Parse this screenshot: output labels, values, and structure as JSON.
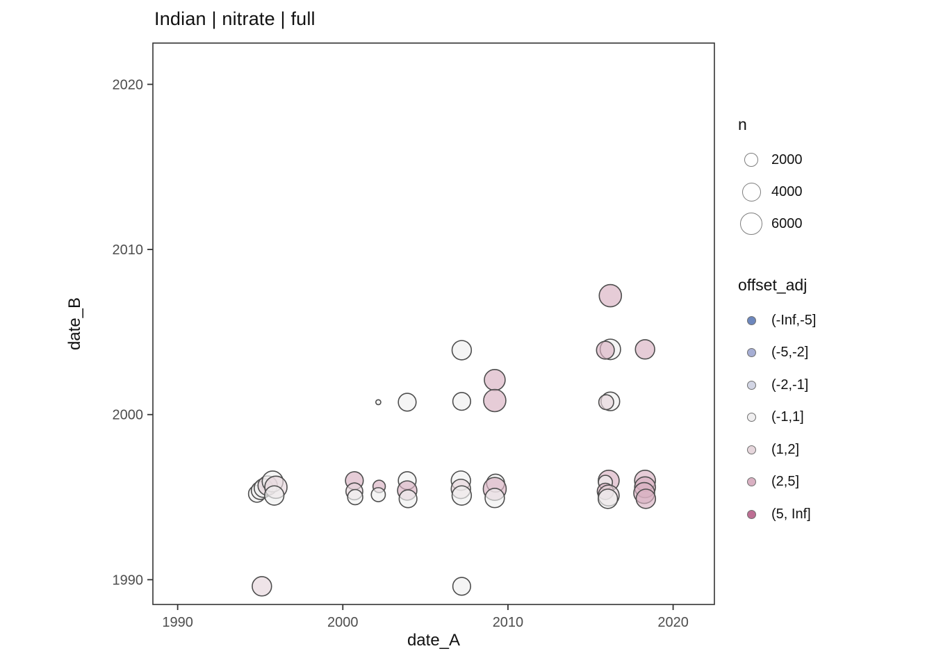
{
  "title": "Indian | nitrate | full",
  "axes": {
    "x_label": "date_A",
    "y_label": "date_B",
    "x_ticks": [
      "1990",
      "2000",
      "2010",
      "2020"
    ],
    "y_ticks": [
      "1990",
      "2000",
      "2010",
      "2020"
    ]
  },
  "legend": {
    "n": {
      "title": "n",
      "items": [
        {
          "label": "2000",
          "n": 2000
        },
        {
          "label": "4000",
          "n": 4000
        },
        {
          "label": "6000",
          "n": 6000
        }
      ]
    },
    "offset_adj": {
      "title": "offset_adj",
      "items": [
        {
          "label": "(-Inf,-5]",
          "color": "#6d87bd"
        },
        {
          "label": "(-5,-2]",
          "color": "#a6aed4"
        },
        {
          "label": "(-2,-1]",
          "color": "#d2d5e4"
        },
        {
          "label": "(-1,1]",
          "color": "#f0eff0"
        },
        {
          "label": "(1,2]",
          "color": "#e6d6dc"
        },
        {
          "label": "(2,5]",
          "color": "#d9b0c2"
        },
        {
          "label": "(5, Inf]",
          "color": "#bd6e93"
        }
      ]
    }
  },
  "chart_data": {
    "type": "scatter",
    "title": "Indian | nitrate | full",
    "xlabel": "date_A",
    "ylabel": "date_B",
    "xlim": [
      1988.5,
      2022.5
    ],
    "ylim": [
      1988.5,
      2022.5
    ],
    "x_ticks": [
      1990,
      2000,
      2010,
      2020
    ],
    "y_ticks": [
      1990,
      2000,
      2010,
      2020
    ],
    "grid": false,
    "legend_position": "right",
    "size_legend": {
      "name": "n",
      "values": [
        2000,
        4000,
        6000
      ]
    },
    "color_legend": {
      "name": "offset_adj",
      "buckets": [
        "(-Inf,-5]",
        "(-5,-2]",
        "(-2,-1]",
        "(-1,1]",
        "(1,2]",
        "(2,5]",
        "(5, Inf]"
      ]
    },
    "points": [
      {
        "date_A": 1994.8,
        "date_B": 1995.2,
        "n": 3300,
        "offset_adj": "(-1,1]"
      },
      {
        "date_A": 1995.0,
        "date_B": 1995.4,
        "n": 3700,
        "offset_adj": "(-1,1]"
      },
      {
        "date_A": 1995.2,
        "date_B": 1995.55,
        "n": 4100,
        "offset_adj": "(-1,1]"
      },
      {
        "date_A": 1995.45,
        "date_B": 1995.7,
        "n": 4400,
        "offset_adj": "(1,2]"
      },
      {
        "date_A": 1995.75,
        "date_B": 1995.95,
        "n": 5100,
        "offset_adj": "(-1,1]"
      },
      {
        "date_A": 1995.95,
        "date_B": 1995.6,
        "n": 5800,
        "offset_adj": "(1,2]"
      },
      {
        "date_A": 1995.85,
        "date_B": 1995.1,
        "n": 4400,
        "offset_adj": "(-1,1]"
      },
      {
        "date_A": 1995.1,
        "date_B": 1989.6,
        "n": 4400,
        "offset_adj": "(1,2]"
      },
      {
        "date_A": 2000.7,
        "date_B": 1996.0,
        "n": 3700,
        "offset_adj": "(2,5]"
      },
      {
        "date_A": 2000.7,
        "date_B": 1995.35,
        "n": 3300,
        "offset_adj": "(1,2]"
      },
      {
        "date_A": 2000.75,
        "date_B": 1995.0,
        "n": 2700,
        "offset_adj": "(-1,1]"
      },
      {
        "date_A": 2002.15,
        "date_B": 2000.75,
        "n": 300,
        "offset_adj": "(-1,1]"
      },
      {
        "date_A": 2002.2,
        "date_B": 1995.65,
        "n": 1800,
        "offset_adj": "(2,5]"
      },
      {
        "date_A": 2002.15,
        "date_B": 1995.15,
        "n": 2300,
        "offset_adj": "(-1,1]"
      },
      {
        "date_A": 2003.9,
        "date_B": 2000.75,
        "n": 3700,
        "offset_adj": "(-1,1]"
      },
      {
        "date_A": 2003.9,
        "date_B": 1996.0,
        "n": 3700,
        "offset_adj": "(-1,1]"
      },
      {
        "date_A": 2003.9,
        "date_B": 1995.4,
        "n": 4400,
        "offset_adj": "(2,5]"
      },
      {
        "date_A": 2003.95,
        "date_B": 1994.9,
        "n": 3700,
        "offset_adj": "(-1,1]"
      },
      {
        "date_A": 2007.2,
        "date_B": 2003.9,
        "n": 4400,
        "offset_adj": "(-1,1]"
      },
      {
        "date_A": 2007.2,
        "date_B": 2000.8,
        "n": 3700,
        "offset_adj": "(-1,1]"
      },
      {
        "date_A": 2007.15,
        "date_B": 1996.0,
        "n": 4400,
        "offset_adj": "(-1,1]"
      },
      {
        "date_A": 2007.15,
        "date_B": 1995.5,
        "n": 4400,
        "offset_adj": "(1,2]"
      },
      {
        "date_A": 2007.2,
        "date_B": 1995.1,
        "n": 4400,
        "offset_adj": "(-1,1]"
      },
      {
        "date_A": 2007.2,
        "date_B": 1989.6,
        "n": 3700,
        "offset_adj": "(-1,1]"
      },
      {
        "date_A": 2009.2,
        "date_B": 2002.1,
        "n": 5100,
        "offset_adj": "(2,5]"
      },
      {
        "date_A": 2009.2,
        "date_B": 2000.85,
        "n": 5800,
        "offset_adj": "(2,5]"
      },
      {
        "date_A": 2009.25,
        "date_B": 1995.85,
        "n": 3800,
        "offset_adj": "(-1,1]"
      },
      {
        "date_A": 2009.2,
        "date_B": 1995.5,
        "n": 6200,
        "offset_adj": "(2,5]"
      },
      {
        "date_A": 2009.2,
        "date_B": 1994.95,
        "n": 4400,
        "offset_adj": "(-1,1]"
      },
      {
        "date_A": 2016.2,
        "date_B": 2007.2,
        "n": 5800,
        "offset_adj": "(2,5]"
      },
      {
        "date_A": 2016.2,
        "date_B": 2003.95,
        "n": 4900,
        "offset_adj": "(-1,1]"
      },
      {
        "date_A": 2015.9,
        "date_B": 2003.9,
        "n": 3700,
        "offset_adj": "(2,5]"
      },
      {
        "date_A": 2016.2,
        "date_B": 2000.8,
        "n": 4100,
        "offset_adj": "(-1,1]"
      },
      {
        "date_A": 2015.95,
        "date_B": 2000.75,
        "n": 2600,
        "offset_adj": "(1,2]"
      },
      {
        "date_A": 2016.1,
        "date_B": 1996.0,
        "n": 5100,
        "offset_adj": "(2,5]"
      },
      {
        "date_A": 2015.9,
        "date_B": 1995.9,
        "n": 2300,
        "offset_adj": "(-1,1]"
      },
      {
        "date_A": 2015.9,
        "date_B": 1995.35,
        "n": 3100,
        "offset_adj": "(2,5]"
      },
      {
        "date_A": 2016.1,
        "date_B": 1995.1,
        "n": 5100,
        "offset_adj": "(1,2]"
      },
      {
        "date_A": 2016.05,
        "date_B": 1994.9,
        "n": 4400,
        "offset_adj": "(-1,1]"
      },
      {
        "date_A": 2018.3,
        "date_B": 2003.95,
        "n": 4400,
        "offset_adj": "(2,5]"
      },
      {
        "date_A": 2018.3,
        "date_B": 1996.0,
        "n": 5100,
        "offset_adj": "(2,5]"
      },
      {
        "date_A": 2018.3,
        "date_B": 1995.6,
        "n": 5100,
        "offset_adj": "(2,5]"
      },
      {
        "date_A": 2018.25,
        "date_B": 1995.25,
        "n": 5100,
        "offset_adj": "(2,5]"
      },
      {
        "date_A": 2018.35,
        "date_B": 1994.9,
        "n": 4400,
        "offset_adj": "(2,5]"
      }
    ]
  }
}
